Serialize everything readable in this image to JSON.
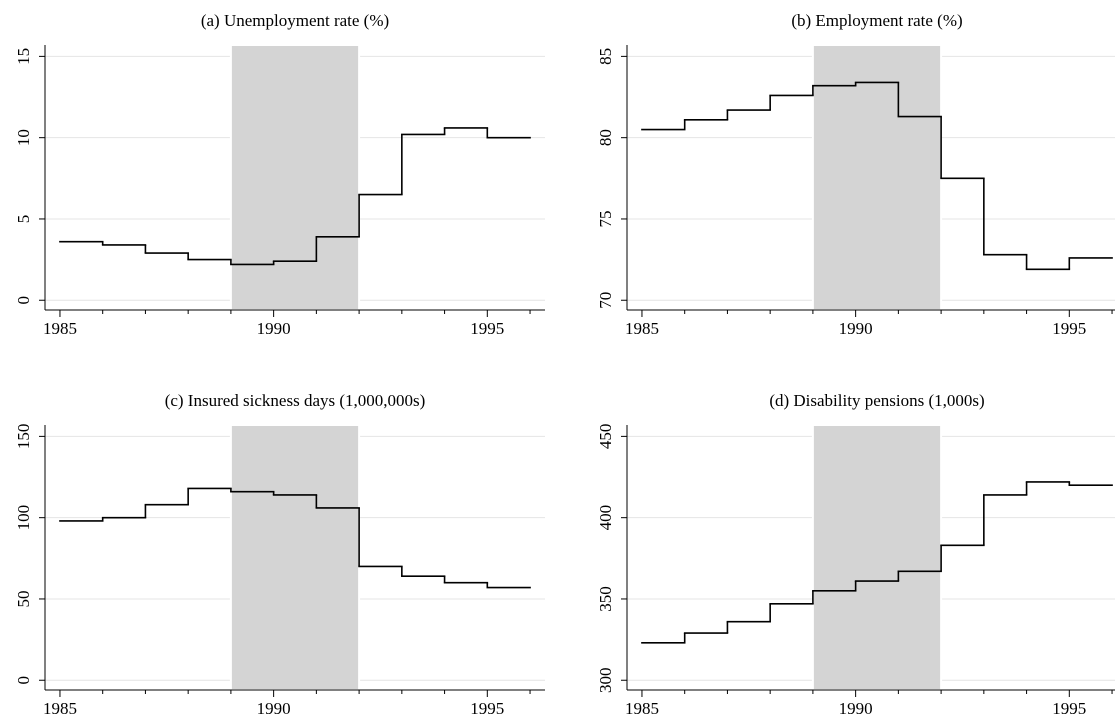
{
  "chart_data": [
    {
      "type": "line",
      "drawstyle": "steps-post",
      "title": "(a) Unemployment rate (%)",
      "x": [
        1985,
        1986,
        1987,
        1988,
        1989,
        1990,
        1991,
        1992,
        1993,
        1994,
        1995
      ],
      "values": [
        3.6,
        3.4,
        2.9,
        2.5,
        2.2,
        2.4,
        3.9,
        6.5,
        10.2,
        10.6,
        10.0
      ],
      "color": "#000000",
      "shaded_span": [
        1989,
        1992
      ],
      "shade_color": "#d4d4d4",
      "xlim": [
        1984.65,
        1996.35
      ],
      "xticks": [
        1985,
        1990,
        1995
      ],
      "xminorticks": [
        1986,
        1987,
        1988,
        1989,
        1991,
        1992,
        1993,
        1994,
        1996
      ],
      "ylim": [
        -0.6,
        15.7
      ],
      "yticks": [
        0,
        5,
        10,
        15
      ],
      "grid": true
    },
    {
      "type": "line",
      "drawstyle": "steps-post",
      "title": "(b) Employment rate (%)",
      "x": [
        1985,
        1986,
        1987,
        1988,
        1989,
        1990,
        1991,
        1992,
        1993,
        1994,
        1995
      ],
      "values": [
        80.5,
        81.1,
        81.7,
        82.6,
        83.2,
        83.4,
        81.3,
        77.5,
        72.8,
        71.9,
        72.6
      ],
      "color": "#000000",
      "shaded_span": [
        1989,
        1992
      ],
      "shade_color": "#d4d4d4",
      "xlim": [
        1984.65,
        1996.35
      ],
      "xticks": [
        1985,
        1990,
        1995
      ],
      "xminorticks": [
        1986,
        1987,
        1988,
        1989,
        1991,
        1992,
        1993,
        1994,
        1996
      ],
      "ylim": [
        69.4,
        85.7
      ],
      "yticks": [
        70,
        75,
        80,
        85
      ],
      "grid": true
    },
    {
      "type": "line",
      "drawstyle": "steps-post",
      "title": "(c) Insured sickness days (1,000,000s)",
      "x": [
        1985,
        1986,
        1987,
        1988,
        1989,
        1990,
        1991,
        1992,
        1993,
        1994,
        1995
      ],
      "values": [
        98,
        100,
        108,
        118,
        116,
        114,
        106,
        70,
        64,
        60,
        57
      ],
      "color": "#000000",
      "shaded_span": [
        1989,
        1992
      ],
      "shade_color": "#d4d4d4",
      "xlim": [
        1984.65,
        1996.35
      ],
      "xticks": [
        1985,
        1990,
        1995
      ],
      "xminorticks": [
        1986,
        1987,
        1988,
        1989,
        1991,
        1992,
        1993,
        1994,
        1996
      ],
      "ylim": [
        -6,
        157
      ],
      "yticks": [
        0,
        50,
        100,
        150
      ],
      "grid": true
    },
    {
      "type": "line",
      "drawstyle": "steps-post",
      "title": "(d) Disability pensions (1,000s)",
      "x": [
        1985,
        1986,
        1987,
        1988,
        1989,
        1990,
        1991,
        1992,
        1993,
        1994,
        1995
      ],
      "values": [
        323,
        329,
        336,
        347,
        355,
        361,
        367,
        383,
        414,
        422,
        420
      ],
      "color": "#000000",
      "shaded_span": [
        1989,
        1992
      ],
      "shade_color": "#d4d4d4",
      "xlim": [
        1984.65,
        1996.35
      ],
      "xticks": [
        1985,
        1990,
        1995
      ],
      "xminorticks": [
        1986,
        1987,
        1988,
        1989,
        1991,
        1992,
        1993,
        1994,
        1996
      ],
      "ylim": [
        294,
        457
      ],
      "yticks": [
        300,
        350,
        400,
        450
      ],
      "grid": true
    }
  ]
}
